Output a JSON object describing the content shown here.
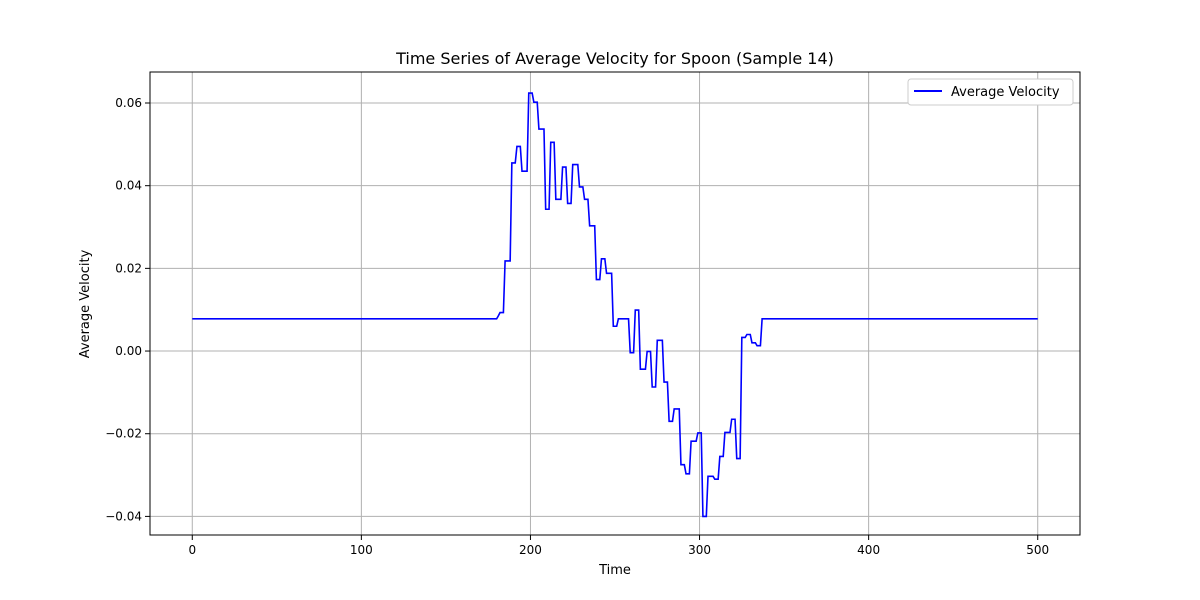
{
  "chart_data": {
    "type": "line",
    "title": "Time Series of Average Velocity for Spoon (Sample 14)",
    "xlabel": "Time",
    "ylabel": "Average Velocity",
    "xlim": [
      -25,
      525
    ],
    "ylim": [
      -0.0445,
      0.0675
    ],
    "xticks": [
      0,
      100,
      200,
      300,
      400,
      500
    ],
    "yticks": [
      -0.04,
      -0.02,
      0.0,
      0.02,
      0.04,
      0.06
    ],
    "xtick_labels": [
      "0",
      "100",
      "200",
      "300",
      "400",
      "500"
    ],
    "ytick_labels": [
      "−0.04",
      "−0.02",
      "0.00",
      "0.02",
      "0.04",
      "0.06"
    ],
    "grid": true,
    "legend_position": "top-right",
    "series": [
      {
        "name": "Average Velocity",
        "color": "#0000ff",
        "points": [
          [
            0,
            0.0078
          ],
          [
            180,
            0.0078
          ],
          [
            181,
            0.0085
          ],
          [
            182,
            0.0093
          ],
          [
            184,
            0.0093
          ],
          [
            185,
            0.0218
          ],
          [
            188,
            0.0218
          ],
          [
            189,
            0.0455
          ],
          [
            191,
            0.0455
          ],
          [
            192,
            0.0495
          ],
          [
            194,
            0.0495
          ],
          [
            195,
            0.0435
          ],
          [
            198,
            0.0435
          ],
          [
            199,
            0.0624
          ],
          [
            201,
            0.0624
          ],
          [
            202,
            0.0602
          ],
          [
            204,
            0.0602
          ],
          [
            205,
            0.0537
          ],
          [
            208,
            0.0537
          ],
          [
            209,
            0.0343
          ],
          [
            211,
            0.0343
          ],
          [
            212,
            0.0505
          ],
          [
            214,
            0.0505
          ],
          [
            215,
            0.0367
          ],
          [
            218,
            0.0367
          ],
          [
            219,
            0.0445
          ],
          [
            221,
            0.0445
          ],
          [
            222,
            0.0357
          ],
          [
            224,
            0.0357
          ],
          [
            225,
            0.0451
          ],
          [
            228,
            0.0451
          ],
          [
            229,
            0.0397
          ],
          [
            231,
            0.0397
          ],
          [
            232,
            0.0367
          ],
          [
            234,
            0.0367
          ],
          [
            235,
            0.0303
          ],
          [
            238,
            0.0303
          ],
          [
            239,
            0.0173
          ],
          [
            241,
            0.0173
          ],
          [
            242,
            0.0223
          ],
          [
            244,
            0.0223
          ],
          [
            245,
            0.0188
          ],
          [
            248,
            0.0188
          ],
          [
            249,
            0.006
          ],
          [
            251,
            0.006
          ],
          [
            252,
            0.0078
          ],
          [
            258,
            0.0078
          ],
          [
            259,
            -0.0004
          ],
          [
            261,
            -0.0004
          ],
          [
            262,
            0.0099
          ],
          [
            264,
            0.0099
          ],
          [
            265,
            -0.0044
          ],
          [
            268,
            -0.0044
          ],
          [
            269,
            -0.0001
          ],
          [
            271,
            -0.0001
          ],
          [
            272,
            -0.0087
          ],
          [
            274,
            -0.0087
          ],
          [
            275,
            0.0026
          ],
          [
            278,
            0.0026
          ],
          [
            279,
            -0.0075
          ],
          [
            281,
            -0.0075
          ],
          [
            282,
            -0.017
          ],
          [
            284,
            -0.017
          ],
          [
            285,
            -0.014
          ],
          [
            288,
            -0.014
          ],
          [
            289,
            -0.0275
          ],
          [
            291,
            -0.0275
          ],
          [
            292,
            -0.0297
          ],
          [
            294,
            -0.0297
          ],
          [
            295,
            -0.0218
          ],
          [
            298,
            -0.0218
          ],
          [
            299,
            -0.0198
          ],
          [
            301,
            -0.0198
          ],
          [
            302,
            -0.04
          ],
          [
            304,
            -0.04
          ],
          [
            305,
            -0.0303
          ],
          [
            308,
            -0.0303
          ],
          [
            309,
            -0.031
          ],
          [
            311,
            -0.031
          ],
          [
            312,
            -0.0255
          ],
          [
            314,
            -0.0255
          ],
          [
            315,
            -0.0197
          ],
          [
            318,
            -0.0197
          ],
          [
            319,
            -0.0165
          ],
          [
            321,
            -0.0165
          ],
          [
            322,
            -0.026
          ],
          [
            324,
            -0.026
          ],
          [
            325,
            0.0033
          ],
          [
            327,
            0.0033
          ],
          [
            328,
            0.004
          ],
          [
            330,
            0.004
          ],
          [
            331,
            0.002
          ],
          [
            333,
            0.002
          ],
          [
            334,
            0.0013
          ],
          [
            336,
            0.0013
          ],
          [
            337,
            0.0078
          ],
          [
            500,
            0.0078
          ]
        ]
      }
    ]
  }
}
